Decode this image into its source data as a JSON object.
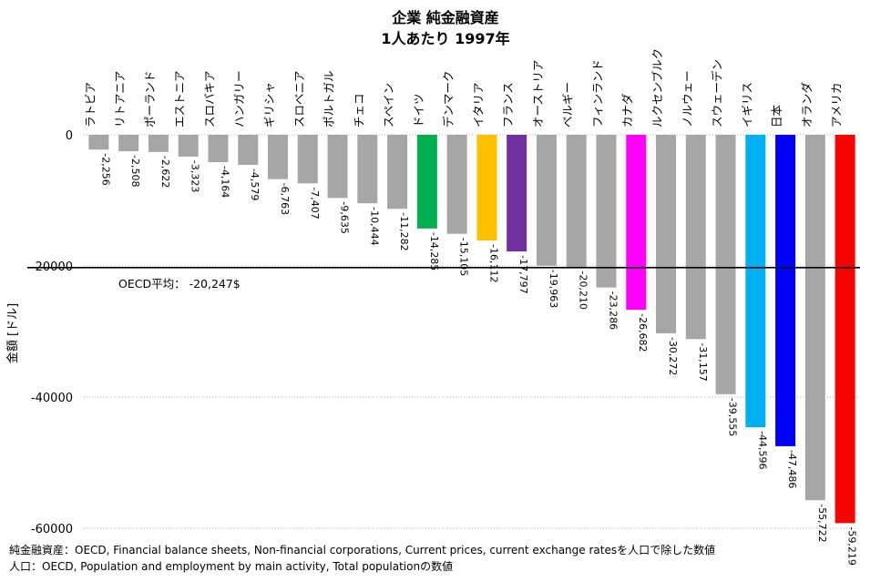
{
  "chart_data": {
    "type": "bar",
    "title": "企業 純金融資産",
    "subtitle": "1人あたり 1997年",
    "ylabel": "金額 [ドル]",
    "xlabel": "",
    "ylim": [
      -60000,
      0
    ],
    "yticks": [
      0,
      -20000,
      -40000,
      -60000
    ],
    "ytick_labels": [
      "0",
      "-20000",
      "-40000",
      "-60000"
    ],
    "grid": true,
    "categories": [
      "ラトビア",
      "リトアニア",
      "ポーランド",
      "エストニア",
      "スロバキア",
      "ハンガリー",
      "ギリシャ",
      "スロベニア",
      "ポルトガル",
      "チェコ",
      "スペイン",
      "ドイツ",
      "デンマーク",
      "イタリア",
      "フランス",
      "オーストリア",
      "ベルギー",
      "フィンランド",
      "カナダ",
      "ルクセンブルク",
      "ノルウェー",
      "スウェーデン",
      "イギリス",
      "日本",
      "オランダ",
      "アメリカ"
    ],
    "values": [
      -2256,
      -2508,
      -2622,
      -3323,
      -4164,
      -4579,
      -6763,
      -7407,
      -9635,
      -10444,
      -11282,
      -14285,
      -15105,
      -16112,
      -17797,
      -19963,
      -20210,
      -23286,
      -26682,
      -30272,
      -31157,
      -39555,
      -44596,
      -47486,
      -55722,
      -59219
    ],
    "value_labels": [
      "-2,256",
      "-2,508",
      "-2,622",
      "-3,323",
      "-4,164",
      "-4,579",
      "-6,763",
      "-7,407",
      "-9,635",
      "-10,444",
      "-11,282",
      "-14,285",
      "-15,105",
      "-16,112",
      "-17,797",
      "-19,963",
      "-20,210",
      "-23,286",
      "-26,682",
      "-30,272",
      "-31,157",
      "-39,555",
      "-44,596",
      "-47,486",
      "-55,722",
      "-59,219"
    ],
    "colors": [
      "#a6a6a6",
      "#a6a6a6",
      "#a6a6a6",
      "#a6a6a6",
      "#a6a6a6",
      "#a6a6a6",
      "#a6a6a6",
      "#a6a6a6",
      "#a6a6a6",
      "#a6a6a6",
      "#a6a6a6",
      "#00b050",
      "#a6a6a6",
      "#ffc000",
      "#7030a0",
      "#a6a6a6",
      "#a6a6a6",
      "#a6a6a6",
      "#ff00ff",
      "#a6a6a6",
      "#a6a6a6",
      "#a6a6a6",
      "#00b0f0",
      "#0000ff",
      "#a6a6a6",
      "#ff0000"
    ],
    "reference_line": {
      "value": -20247,
      "label": "OECD平均： -20,247$",
      "color": "#000000"
    }
  },
  "notes": [
    "純金融資産：OECD, Financial balance sheets, Non-financial corporations, Current prices, current exchange ratesを人口で除した数値",
    "人口：OECD, Population and employment by main activity, Total populationの数値"
  ]
}
